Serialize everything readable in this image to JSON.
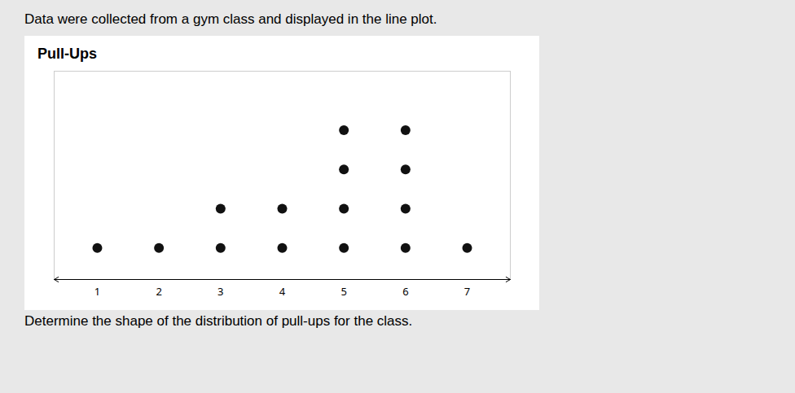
{
  "chart_data": {
    "type": "dot_plot",
    "title": "Pull-Ups",
    "annotations": [
      "Data were collected from a gym class and displayed in the line plot.",
      "Determine the shape of the distribution of pull-ups for the class."
    ],
    "x": [
      1,
      2,
      3,
      4,
      5,
      6,
      7
    ],
    "values": [
      1,
      1,
      2,
      2,
      4,
      4,
      1
    ],
    "color": "#111111",
    "xlim": [
      0.3,
      7.7
    ],
    "xticks": [
      1,
      2,
      3,
      4,
      5,
      6,
      7
    ],
    "ylim": [
      -0.8,
      4.5
    ],
    "tick_labels": "x",
    "grid": false
  }
}
